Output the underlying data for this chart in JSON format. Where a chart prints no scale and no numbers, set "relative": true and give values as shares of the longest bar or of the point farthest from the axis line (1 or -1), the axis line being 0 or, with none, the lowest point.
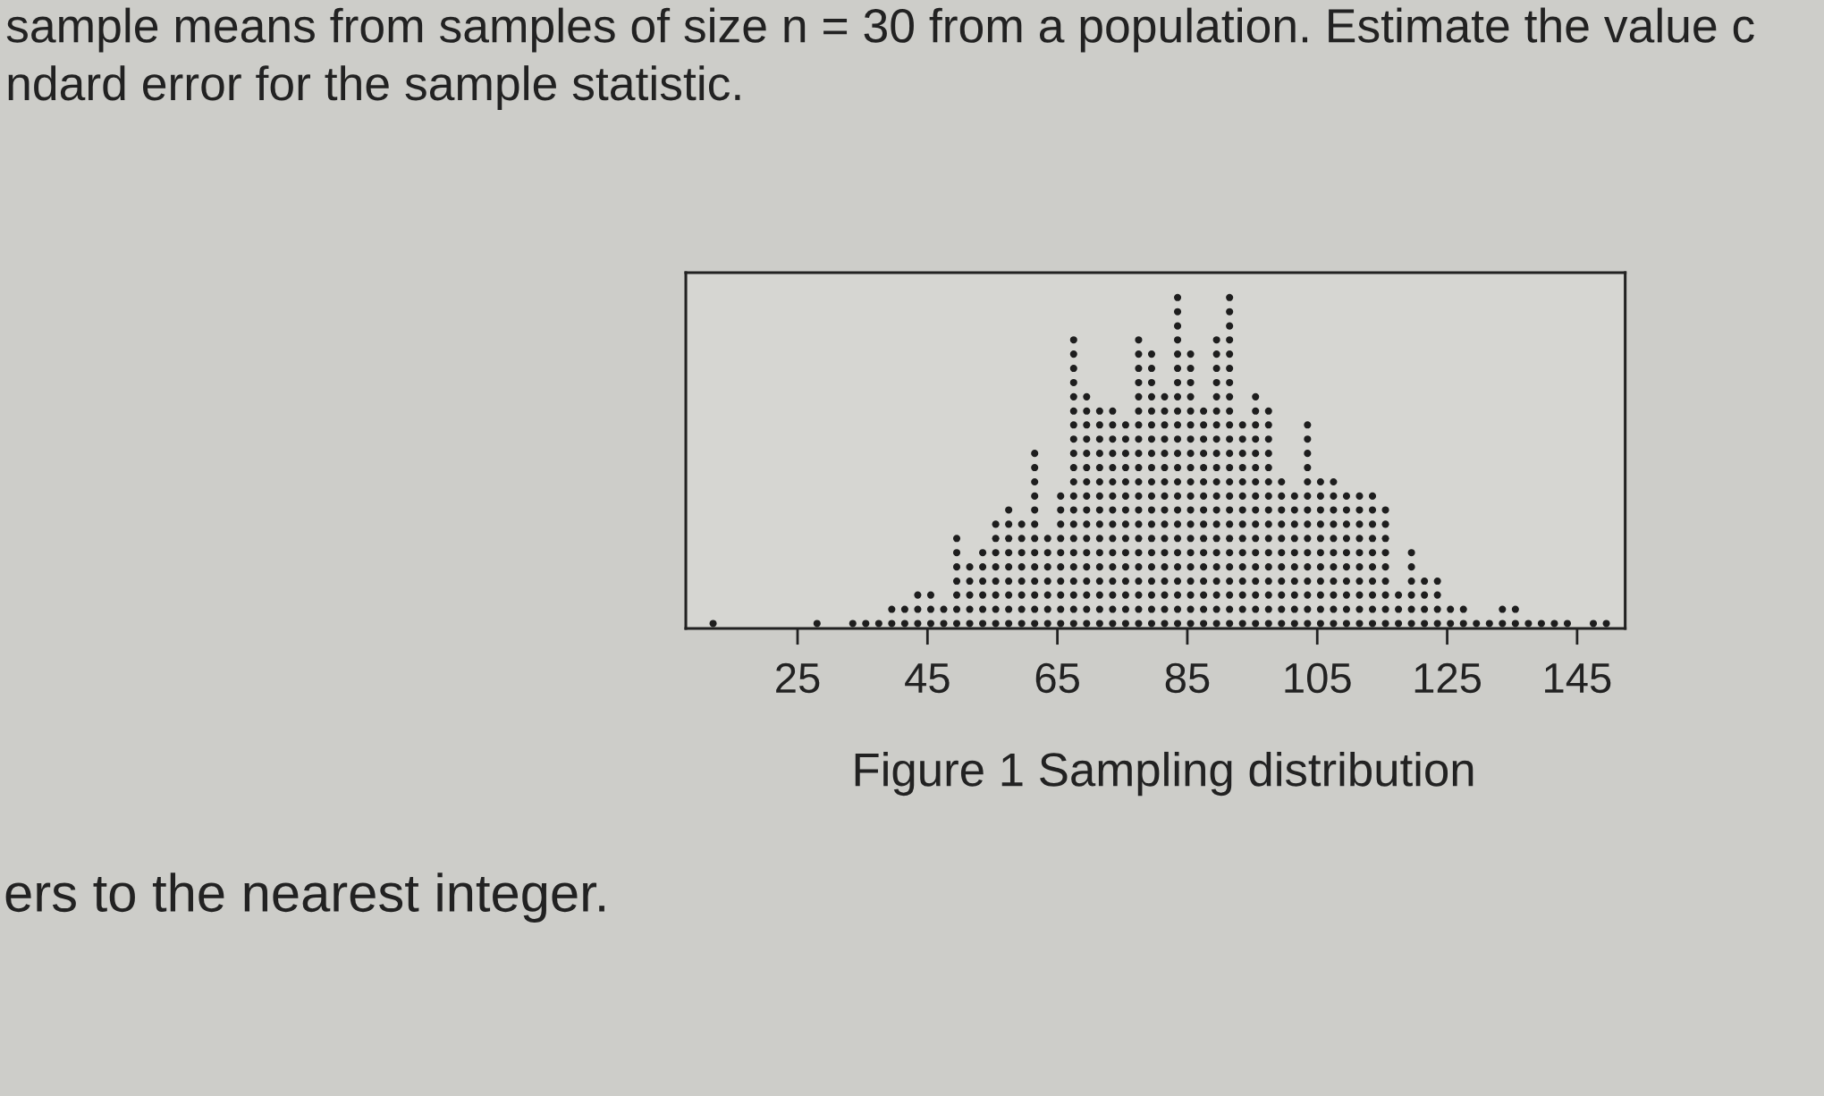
{
  "chart_data": {
    "type": "scatter",
    "relative": true,
    "title": "sample means from samples of size n = 30 from a population. Estimate the value c\nndard error for the sample statistic.",
    "annotations": [
      "Figure 1 Sampling distribution",
      "ers to the nearest integer."
    ],
    "color": "#1e1e1e",
    "marker": "circle",
    "xlim": [
      7.8,
      152.4
    ],
    "xticks": [
      25,
      45,
      65,
      85,
      105,
      125,
      145
    ],
    "tick_labels": "x",
    "x": [
      12,
      28,
      33.5,
      35.5,
      37.5,
      39.5,
      39.5,
      41.5,
      41.5,
      43.5,
      43.5,
      43.5,
      45.5,
      45.5,
      45.5,
      47.5,
      47.5,
      49.5,
      49.5,
      49.5,
      49.5,
      49.5,
      49.5,
      49.5,
      51.5,
      51.5,
      51.5,
      51.5,
      51.5,
      53.5,
      53.5,
      53.5,
      53.5,
      53.5,
      53.5,
      55.5,
      55.5,
      55.5,
      55.5,
      55.5,
      55.5,
      55.5,
      55.5,
      57.5,
      57.5,
      57.5,
      57.5,
      57.5,
      57.5,
      57.5,
      57.5,
      57.5,
      59.5,
      59.5,
      59.5,
      59.5,
      59.5,
      59.5,
      59.5,
      59.5,
      61.5,
      61.5,
      61.5,
      61.5,
      61.5,
      61.5,
      61.5,
      61.5,
      61.5,
      61.5,
      61.5,
      61.5,
      61.5,
      63.5,
      63.5,
      63.5,
      63.5,
      63.5,
      63.5,
      63.5,
      65.5,
      65.5,
      65.5,
      65.5,
      65.5,
      65.5,
      65.5,
      65.5,
      65.5,
      65.5,
      67.5,
      67.5,
      67.5,
      67.5,
      67.5,
      67.5,
      67.5,
      67.5,
      67.5,
      67.5,
      67.5,
      67.5,
      67.5,
      67.5,
      67.5,
      67.5,
      67.5,
      67.5,
      67.5,
      67.5,
      67.5,
      69.5,
      69.5,
      69.5,
      69.5,
      69.5,
      69.5,
      69.5,
      69.5,
      69.5,
      69.5,
      69.5,
      69.5,
      69.5,
      69.5,
      69.5,
      69.5,
      69.5,
      71.5,
      71.5,
      71.5,
      71.5,
      71.5,
      71.5,
      71.5,
      71.5,
      71.5,
      71.5,
      71.5,
      71.5,
      71.5,
      71.5,
      71.5,
      71.5,
      73.5,
      73.5,
      73.5,
      73.5,
      73.5,
      73.5,
      73.5,
      73.5,
      73.5,
      73.5,
      73.5,
      73.5,
      73.5,
      73.5,
      73.5,
      73.5,
      75.5,
      75.5,
      75.5,
      75.5,
      75.5,
      75.5,
      75.5,
      75.5,
      75.5,
      75.5,
      75.5,
      75.5,
      75.5,
      75.5,
      75.5,
      77.5,
      77.5,
      77.5,
      77.5,
      77.5,
      77.5,
      77.5,
      77.5,
      77.5,
      77.5,
      77.5,
      77.5,
      77.5,
      77.5,
      77.5,
      77.5,
      77.5,
      77.5,
      77.5,
      77.5,
      77.5,
      79.5,
      79.5,
      79.5,
      79.5,
      79.5,
      79.5,
      79.5,
      79.5,
      79.5,
      79.5,
      79.5,
      79.5,
      79.5,
      79.5,
      79.5,
      79.5,
      79.5,
      79.5,
      79.5,
      79.5,
      81.5,
      81.5,
      81.5,
      81.5,
      81.5,
      81.5,
      81.5,
      81.5,
      81.5,
      81.5,
      81.5,
      81.5,
      81.5,
      81.5,
      81.5,
      81.5,
      81.5,
      83.5,
      83.5,
      83.5,
      83.5,
      83.5,
      83.5,
      83.5,
      83.5,
      83.5,
      83.5,
      83.5,
      83.5,
      83.5,
      83.5,
      83.5,
      83.5,
      83.5,
      83.5,
      83.5,
      83.5,
      83.5,
      83.5,
      83.5,
      83.5,
      85.5,
      85.5,
      85.5,
      85.5,
      85.5,
      85.5,
      85.5,
      85.5,
      85.5,
      85.5,
      85.5,
      85.5,
      85.5,
      85.5,
      85.5,
      85.5,
      85.5,
      85.5,
      85.5,
      85.5,
      87.5,
      87.5,
      87.5,
      87.5,
      87.5,
      87.5,
      87.5,
      87.5,
      87.5,
      87.5,
      87.5,
      87.5,
      87.5,
      87.5,
      87.5,
      87.5,
      89.5,
      89.5,
      89.5,
      89.5,
      89.5,
      89.5,
      89.5,
      89.5,
      89.5,
      89.5,
      89.5,
      89.5,
      89.5,
      89.5,
      89.5,
      89.5,
      89.5,
      89.5,
      89.5,
      89.5,
      89.5,
      91.5,
      91.5,
      91.5,
      91.5,
      91.5,
      91.5,
      91.5,
      91.5,
      91.5,
      91.5,
      91.5,
      91.5,
      91.5,
      91.5,
      91.5,
      91.5,
      91.5,
      91.5,
      91.5,
      91.5,
      91.5,
      91.5,
      91.5,
      91.5,
      93.5,
      93.5,
      93.5,
      93.5,
      93.5,
      93.5,
      93.5,
      93.5,
      93.5,
      93.5,
      93.5,
      93.5,
      93.5,
      93.5,
      93.5,
      95.5,
      95.5,
      95.5,
      95.5,
      95.5,
      95.5,
      95.5,
      95.5,
      95.5,
      95.5,
      95.5,
      95.5,
      95.5,
      95.5,
      95.5,
      95.5,
      95.5,
      97.5,
      97.5,
      97.5,
      97.5,
      97.5,
      97.5,
      97.5,
      97.5,
      97.5,
      97.5,
      97.5,
      97.5,
      97.5,
      97.5,
      97.5,
      97.5,
      99.5,
      99.5,
      99.5,
      99.5,
      99.5,
      99.5,
      99.5,
      99.5,
      99.5,
      99.5,
      99.5,
      101.5,
      101.5,
      101.5,
      101.5,
      101.5,
      101.5,
      101.5,
      101.5,
      101.5,
      101.5,
      103.5,
      103.5,
      103.5,
      103.5,
      103.5,
      103.5,
      103.5,
      103.5,
      103.5,
      103.5,
      103.5,
      103.5,
      103.5,
      103.5,
      103.5,
      105.5,
      105.5,
      105.5,
      105.5,
      105.5,
      105.5,
      105.5,
      105.5,
      105.5,
      105.5,
      105.5,
      107.5,
      107.5,
      107.5,
      107.5,
      107.5,
      107.5,
      107.5,
      107.5,
      107.5,
      107.5,
      107.5,
      109.5,
      109.5,
      109.5,
      109.5,
      109.5,
      109.5,
      109.5,
      109.5,
      109.5,
      109.5,
      111.5,
      111.5,
      111.5,
      111.5,
      111.5,
      111.5,
      111.5,
      111.5,
      111.5,
      111.5,
      113.5,
      113.5,
      113.5,
      113.5,
      113.5,
      113.5,
      113.5,
      113.5,
      113.5,
      113.5,
      115.5,
      115.5,
      115.5,
      115.5,
      115.5,
      115.5,
      115.5,
      115.5,
      115.5,
      117.5,
      117.5,
      117.5,
      119.5,
      119.5,
      119.5,
      119.5,
      119.5,
      119.5,
      121.5,
      121.5,
      121.5,
      121.5,
      123.5,
      123.5,
      123.5,
      123.5,
      125.5,
      125.5,
      127.5,
      127.5,
      129.5,
      131.5,
      133.5,
      133.5,
      135.5,
      135.5,
      137.5,
      139.5,
      141.5,
      143.5,
      147.5,
      149.5
    ],
    "values": [
      0.015,
      0.015,
      0.015,
      0.015,
      0.015,
      0.015,
      0.058,
      0.015,
      0.058,
      0.015,
      0.058,
      0.101,
      0.015,
      0.058,
      0.101,
      0.015,
      0.058,
      0.015,
      0.058,
      0.101,
      0.143,
      0.186,
      0.229,
      0.272,
      0.015,
      0.058,
      0.101,
      0.143,
      0.186,
      0.015,
      0.058,
      0.101,
      0.143,
      0.186,
      0.229,
      0.015,
      0.058,
      0.101,
      0.143,
      0.186,
      0.229,
      0.272,
      0.315,
      0.015,
      0.058,
      0.101,
      0.143,
      0.186,
      0.229,
      0.272,
      0.315,
      0.358,
      0.015,
      0.058,
      0.101,
      0.143,
      0.186,
      0.229,
      0.272,
      0.315,
      0.015,
      0.058,
      0.101,
      0.143,
      0.186,
      0.229,
      0.272,
      0.315,
      0.358,
      0.4,
      0.443,
      0.486,
      0.529,
      0.015,
      0.058,
      0.101,
      0.143,
      0.186,
      0.229,
      0.272,
      0.015,
      0.058,
      0.101,
      0.143,
      0.186,
      0.229,
      0.272,
      0.315,
      0.358,
      0.4,
      0.015,
      0.058,
      0.101,
      0.143,
      0.186,
      0.229,
      0.272,
      0.315,
      0.358,
      0.4,
      0.443,
      0.486,
      0.529,
      0.572,
      0.615,
      0.657,
      0.7,
      0.743,
      0.786,
      0.829,
      0.872,
      0.015,
      0.058,
      0.101,
      0.143,
      0.186,
      0.229,
      0.272,
      0.315,
      0.358,
      0.4,
      0.443,
      0.486,
      0.529,
      0.572,
      0.615,
      0.657,
      0.7,
      0.015,
      0.058,
      0.101,
      0.143,
      0.186,
      0.229,
      0.272,
      0.315,
      0.358,
      0.4,
      0.443,
      0.486,
      0.529,
      0.572,
      0.615,
      0.657,
      0.015,
      0.058,
      0.101,
      0.143,
      0.186,
      0.229,
      0.272,
      0.315,
      0.358,
      0.4,
      0.443,
      0.486,
      0.529,
      0.572,
      0.615,
      0.657,
      0.015,
      0.058,
      0.101,
      0.143,
      0.186,
      0.229,
      0.272,
      0.315,
      0.358,
      0.4,
      0.443,
      0.486,
      0.529,
      0.572,
      0.615,
      0.015,
      0.058,
      0.101,
      0.143,
      0.186,
      0.229,
      0.272,
      0.315,
      0.358,
      0.4,
      0.443,
      0.486,
      0.529,
      0.572,
      0.615,
      0.657,
      0.7,
      0.743,
      0.786,
      0.829,
      0.872,
      0.015,
      0.058,
      0.101,
      0.143,
      0.186,
      0.229,
      0.272,
      0.315,
      0.358,
      0.4,
      0.443,
      0.486,
      0.529,
      0.572,
      0.615,
      0.657,
      0.7,
      0.743,
      0.786,
      0.829,
      0.015,
      0.058,
      0.101,
      0.143,
      0.186,
      0.229,
      0.272,
      0.315,
      0.358,
      0.4,
      0.443,
      0.486,
      0.529,
      0.572,
      0.615,
      0.657,
      0.7,
      0.015,
      0.058,
      0.101,
      0.143,
      0.186,
      0.229,
      0.272,
      0.315,
      0.358,
      0.4,
      0.443,
      0.486,
      0.529,
      0.572,
      0.615,
      0.657,
      0.7,
      0.743,
      0.786,
      0.829,
      0.872,
      0.914,
      0.957,
      1,
      0.015,
      0.058,
      0.101,
      0.143,
      0.186,
      0.229,
      0.272,
      0.315,
      0.358,
      0.4,
      0.443,
      0.486,
      0.529,
      0.572,
      0.615,
      0.657,
      0.7,
      0.743,
      0.786,
      0.829,
      0.015,
      0.058,
      0.101,
      0.143,
      0.186,
      0.229,
      0.272,
      0.315,
      0.358,
      0.4,
      0.443,
      0.486,
      0.529,
      0.572,
      0.615,
      0.657,
      0.015,
      0.058,
      0.101,
      0.143,
      0.186,
      0.229,
      0.272,
      0.315,
      0.358,
      0.4,
      0.443,
      0.486,
      0.529,
      0.572,
      0.615,
      0.657,
      0.7,
      0.743,
      0.786,
      0.829,
      0.872,
      0.015,
      0.058,
      0.101,
      0.143,
      0.186,
      0.229,
      0.272,
      0.315,
      0.358,
      0.4,
      0.443,
      0.486,
      0.529,
      0.572,
      0.615,
      0.657,
      0.7,
      0.743,
      0.786,
      0.829,
      0.872,
      0.914,
      0.957,
      1,
      0.015,
      0.058,
      0.101,
      0.143,
      0.186,
      0.229,
      0.272,
      0.315,
      0.358,
      0.4,
      0.443,
      0.486,
      0.529,
      0.572,
      0.615,
      0.015,
      0.058,
      0.101,
      0.143,
      0.186,
      0.229,
      0.272,
      0.315,
      0.358,
      0.4,
      0.443,
      0.486,
      0.529,
      0.572,
      0.615,
      0.657,
      0.7,
      0.015,
      0.058,
      0.101,
      0.143,
      0.186,
      0.229,
      0.272,
      0.315,
      0.358,
      0.4,
      0.443,
      0.486,
      0.529,
      0.572,
      0.615,
      0.657,
      0.015,
      0.058,
      0.101,
      0.143,
      0.186,
      0.229,
      0.272,
      0.315,
      0.358,
      0.4,
      0.443,
      0.015,
      0.058,
      0.101,
      0.143,
      0.186,
      0.229,
      0.272,
      0.315,
      0.358,
      0.4,
      0.015,
      0.058,
      0.101,
      0.143,
      0.186,
      0.229,
      0.272,
      0.315,
      0.358,
      0.4,
      0.443,
      0.486,
      0.529,
      0.572,
      0.615,
      0.015,
      0.058,
      0.101,
      0.143,
      0.186,
      0.229,
      0.272,
      0.315,
      0.358,
      0.4,
      0.443,
      0.015,
      0.058,
      0.101,
      0.143,
      0.186,
      0.229,
      0.272,
      0.315,
      0.358,
      0.4,
      0.443,
      0.015,
      0.058,
      0.101,
      0.143,
      0.186,
      0.229,
      0.272,
      0.315,
      0.358,
      0.4,
      0.015,
      0.058,
      0.101,
      0.143,
      0.186,
      0.229,
      0.272,
      0.315,
      0.358,
      0.4,
      0.015,
      0.058,
      0.101,
      0.143,
      0.186,
      0.229,
      0.272,
      0.315,
      0.358,
      0.4,
      0.015,
      0.058,
      0.101,
      0.143,
      0.186,
      0.229,
      0.272,
      0.315,
      0.358,
      0.015,
      0.058,
      0.101,
      0.015,
      0.058,
      0.101,
      0.143,
      0.186,
      0.229,
      0.015,
      0.058,
      0.101,
      0.143,
      0.015,
      0.058,
      0.101,
      0.143,
      0.015,
      0.058,
      0.015,
      0.058,
      0.015,
      0.015,
      0.015,
      0.058,
      0.015,
      0.058,
      0.015,
      0.015,
      0.015,
      0.015,
      0.015,
      0.015
    ]
  }
}
